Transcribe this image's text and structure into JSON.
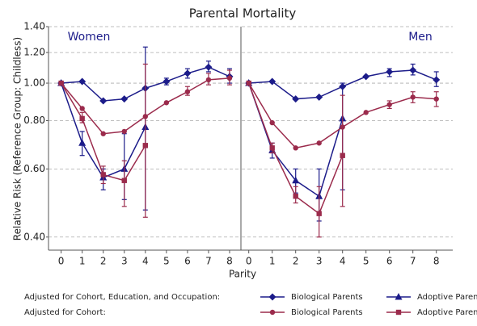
{
  "title": "Parental Mortality",
  "y_label": "Relative Risk (Reference Group: Childless)",
  "x_label": "Parity",
  "legend_rows": [
    "Adjusted for Cohort, Education, and Occupation:",
    "Adjusted for Cohort:"
  ],
  "chart_data": [
    {
      "type": "line",
      "panel_title": "Women",
      "log_y": true,
      "grid": true,
      "x": [
        0,
        1,
        2,
        3,
        4,
        5,
        6,
        7,
        8
      ],
      "xlim": [
        -0.6,
        8.5
      ],
      "xticks": [
        0,
        1,
        2,
        3,
        4,
        5,
        6,
        7,
        8
      ],
      "ylim": [
        0.37,
        1.4
      ],
      "yticks": [
        {
          "value": 0.4,
          "label": "0.40"
        },
        {
          "value": 0.6,
          "label": "0.60"
        },
        {
          "value": 0.8,
          "label": "0.80"
        },
        {
          "value": 1.0,
          "label": "1.00"
        },
        {
          "value": 1.2,
          "label": "1.20"
        },
        {
          "value": 1.4,
          "label": "1.40"
        }
      ],
      "series": [
        {
          "name": "Biological Parents",
          "color": "#1c1c8a",
          "marker": "diamond",
          "values": [
            1.0,
            1.01,
            0.9,
            0.91,
            0.97,
            1.01,
            1.06,
            1.1,
            1.04
          ],
          "lower": [
            null,
            null,
            null,
            null,
            null,
            0.99,
            1.03,
            1.07,
            1.0
          ],
          "upper": [
            null,
            null,
            null,
            null,
            null,
            1.03,
            1.09,
            1.14,
            1.09
          ]
        },
        {
          "name": "Adoptive Parents",
          "color": "#1c1c8a",
          "marker": "triangle",
          "values": [
            1.0,
            0.7,
            0.57,
            0.6,
            0.77,
            null,
            null,
            null,
            null
          ],
          "lower": [
            null,
            0.65,
            0.53,
            0.5,
            0.47,
            null,
            null,
            null,
            null
          ],
          "upper": [
            null,
            0.75,
            0.6,
            0.74,
            1.24,
            null,
            null,
            null,
            null
          ]
        },
        {
          "name": "Biological Parents",
          "color": "#9b2b4c",
          "marker": "circle",
          "values": [
            1.0,
            0.86,
            0.74,
            0.75,
            0.82,
            0.89,
            0.95,
            1.02,
            1.03
          ],
          "lower": [
            null,
            null,
            null,
            null,
            null,
            null,
            0.93,
            0.99,
            0.99
          ],
          "upper": [
            null,
            null,
            null,
            null,
            null,
            null,
            0.98,
            1.06,
            1.08
          ]
        },
        {
          "name": "Adoptive Parents",
          "color": "#9b2b4c",
          "marker": "square",
          "values": [
            1.0,
            0.81,
            0.58,
            0.56,
            0.69,
            null,
            null,
            null,
            null
          ],
          "lower": [
            null,
            0.79,
            0.55,
            0.48,
            0.45,
            null,
            null,
            null,
            null
          ],
          "upper": [
            null,
            0.84,
            0.61,
            0.63,
            1.12,
            null,
            null,
            null,
            null
          ]
        }
      ]
    },
    {
      "type": "line",
      "panel_title": "Men",
      "log_y": true,
      "grid": true,
      "x": [
        0,
        1,
        2,
        3,
        4,
        5,
        6,
        7,
        8
      ],
      "xlim": [
        -0.3,
        8.7
      ],
      "xticks": [
        0,
        1,
        2,
        3,
        4,
        5,
        6,
        7,
        8
      ],
      "ylim": [
        0.37,
        1.4
      ],
      "yticks": [
        {
          "value": 0.4,
          "label": "0.40"
        },
        {
          "value": 0.6,
          "label": "0.60"
        },
        {
          "value": 0.8,
          "label": "0.80"
        },
        {
          "value": 1.0,
          "label": "1.00"
        },
        {
          "value": 1.2,
          "label": "1.20"
        },
        {
          "value": 1.4,
          "label": "1.40"
        }
      ],
      "series": [
        {
          "name": "Biological Parents",
          "color": "#1c1c8a",
          "marker": "diamond",
          "values": [
            1.0,
            1.01,
            0.91,
            0.92,
            0.98,
            1.04,
            1.07,
            1.08,
            1.02
          ],
          "lower": [
            null,
            null,
            null,
            null,
            null,
            null,
            1.04,
            1.05,
            0.98
          ],
          "upper": [
            null,
            null,
            null,
            null,
            null,
            null,
            1.09,
            1.12,
            1.07
          ]
        },
        {
          "name": "Adoptive Parents",
          "color": "#1c1c8a",
          "marker": "triangle",
          "values": [
            1.0,
            0.67,
            0.56,
            0.51,
            0.81,
            null,
            null,
            null,
            null
          ],
          "lower": [
            null,
            0.64,
            0.52,
            0.44,
            0.53,
            null,
            null,
            null,
            null
          ],
          "upper": [
            null,
            0.7,
            0.6,
            0.6,
            1.0,
            null,
            null,
            null,
            null
          ]
        },
        {
          "name": "Biological Parents",
          "color": "#9b2b4c",
          "marker": "circle",
          "values": [
            1.0,
            0.79,
            0.68,
            0.7,
            0.77,
            0.84,
            0.88,
            0.92,
            0.91
          ],
          "lower": [
            null,
            null,
            null,
            null,
            null,
            null,
            0.86,
            0.89,
            0.87
          ],
          "upper": [
            null,
            null,
            null,
            null,
            null,
            null,
            0.9,
            0.95,
            0.95
          ]
        },
        {
          "name": "Adoptive Parents",
          "color": "#9b2b4c",
          "marker": "square",
          "values": [
            1.0,
            0.68,
            0.51,
            0.46,
            0.65,
            null,
            null,
            null,
            null
          ],
          "lower": [
            null,
            0.66,
            0.49,
            0.4,
            0.48,
            null,
            null,
            null,
            null
          ],
          "upper": [
            null,
            0.7,
            0.54,
            0.54,
            0.93,
            null,
            null,
            null,
            null
          ]
        }
      ]
    }
  ]
}
